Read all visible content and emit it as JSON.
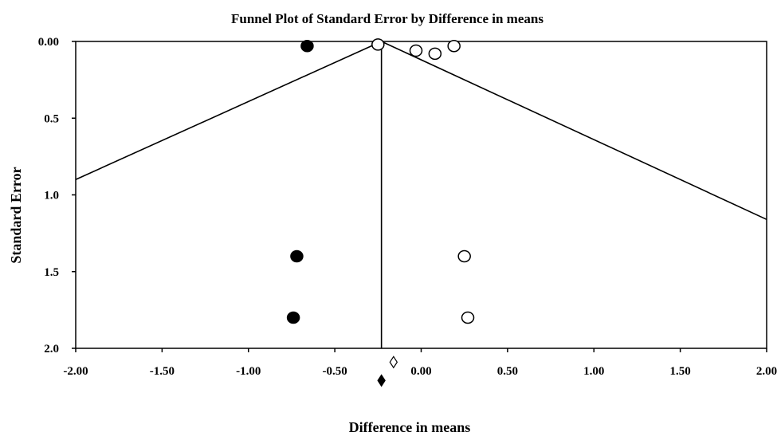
{
  "chart_data": {
    "type": "scatter",
    "title": "Funnel Plot of Standard Error by Difference in means",
    "xlabel": "Difference in means",
    "ylabel": "Standard Error",
    "xlim": [
      -2.0,
      2.0
    ],
    "ylim": [
      0.0,
      2.0
    ],
    "y_inverted": true,
    "x_ticks": [
      "-2.00",
      "-1.50",
      "-1.00",
      "-0.50",
      "0.00",
      "0.50",
      "1.00",
      "1.50",
      "2.00"
    ],
    "x_tick_values": [
      -2.0,
      -1.5,
      -1.0,
      -0.5,
      0.0,
      0.5,
      1.0,
      1.5,
      2.0
    ],
    "y_ticks": [
      "0.00",
      "0.5",
      "1.0",
      "1.5",
      "2.0"
    ],
    "y_tick_values": [
      0.0,
      0.5,
      1.0,
      1.5,
      2.0
    ],
    "series": [
      {
        "marker": "open-circle",
        "points": [
          {
            "x": -0.25,
            "y": 0.02
          },
          {
            "x": -0.03,
            "y": 0.06
          },
          {
            "x": 0.08,
            "y": 0.08
          },
          {
            "x": 0.19,
            "y": 0.03
          },
          {
            "x": 0.25,
            "y": 1.4
          },
          {
            "x": 0.27,
            "y": 1.8
          }
        ]
      },
      {
        "marker": "filled-circle",
        "points": [
          {
            "x": -0.66,
            "y": 0.03
          },
          {
            "x": -0.72,
            "y": 1.4
          },
          {
            "x": -0.74,
            "y": 1.8
          }
        ]
      }
    ],
    "funnel": {
      "apex": {
        "x": -0.23,
        "y": 0.0
      },
      "left_end": {
        "x": -2.0,
        "y": 0.9
      },
      "right_end": {
        "x": 2.0,
        "y": 1.16
      },
      "mean_line_x": -0.23
    },
    "summary_diamonds": [
      {
        "marker": "open-diamond",
        "x": -0.16,
        "y": 2.09
      },
      {
        "marker": "filled-diamond",
        "x": -0.23,
        "y": 2.21
      }
    ],
    "grid": false,
    "legend": "none",
    "colors": {
      "line": "#000000",
      "background": "#ffffff"
    }
  }
}
